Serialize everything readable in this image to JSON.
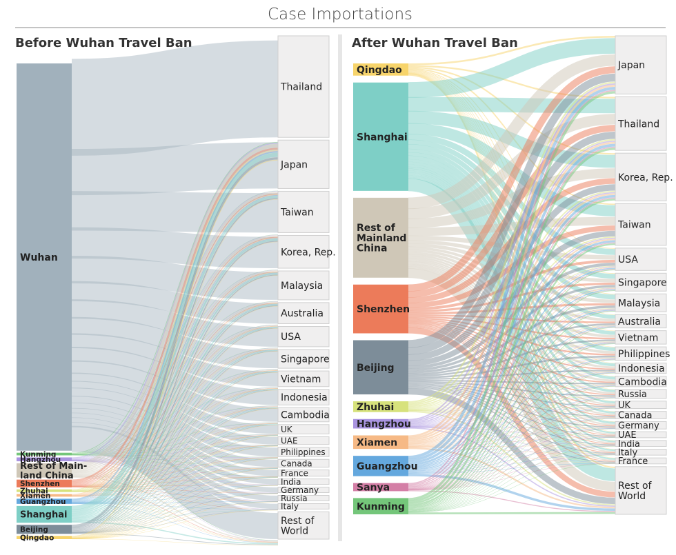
{
  "title": "Case Importations",
  "chart_data": [
    {
      "type": "sankey",
      "title": "Before Wuhan Travel Ban",
      "sources": [
        {
          "name": "Wuhan",
          "value": 600,
          "color": "#a1b1bc"
        },
        {
          "name": "Kunming",
          "value": 4,
          "color": "#74c67a"
        },
        {
          "name": "Hangzhou",
          "value": 6,
          "color": "#a994e0"
        },
        {
          "name": "Rest of Main-\nland China",
          "value": 22,
          "color": "#cfc7b7"
        },
        {
          "name": "Shenzhen",
          "value": 12,
          "color": "#ec7b5a"
        },
        {
          "name": "Zhuhai",
          "value": 4,
          "color": "#d7e27c"
        },
        {
          "name": "Xiamen",
          "value": 4,
          "color": "#f6b985"
        },
        {
          "name": "Guangzhou",
          "value": 8,
          "color": "#64a8de"
        },
        {
          "name": "Shanghai",
          "value": 26,
          "color": "#7ecfc6"
        },
        {
          "name": "Beijing",
          "value": 14,
          "color": "#7d8d99"
        },
        {
          "name": "Qingdao",
          "value": 5,
          "color": "#f7d46b"
        }
      ],
      "destinations": [
        {
          "name": "Thailand",
          "value": 130
        },
        {
          "name": "Japan",
          "value": 62
        },
        {
          "name": "Taiwan",
          "value": 53
        },
        {
          "name": "Korea, Rep.",
          "value": 42
        },
        {
          "name": "Malaysia",
          "value": 37
        },
        {
          "name": "Australia",
          "value": 27
        },
        {
          "name": "USA",
          "value": 26
        },
        {
          "name": "Singapore",
          "value": 24
        },
        {
          "name": "Vietnam",
          "value": 20
        },
        {
          "name": "Indonesia",
          "value": 20
        },
        {
          "name": "Cambodia",
          "value": 18
        },
        {
          "name": "UK",
          "value": 12
        },
        {
          "name": "UAE",
          "value": 10
        },
        {
          "name": "Philippines",
          "value": 12
        },
        {
          "name": "Canada",
          "value": 10
        },
        {
          "name": "France",
          "value": 8
        },
        {
          "name": "India",
          "value": 7
        },
        {
          "name": "Germany",
          "value": 7
        },
        {
          "name": "Russia",
          "value": 7
        },
        {
          "name": "Italy",
          "value": 7
        },
        {
          "name": "Rest of\nWorld",
          "value": 35
        }
      ]
    },
    {
      "type": "sankey",
      "title": "After Wuhan Travel Ban",
      "sources": [
        {
          "name": "Qingdao",
          "value": 18,
          "color": "#f7d46b"
        },
        {
          "name": "Shanghai",
          "value": 160,
          "color": "#7ecfc6"
        },
        {
          "name": "Rest of\nMainland\nChina",
          "value": 118,
          "color": "#cfc7b7"
        },
        {
          "name": "Shenzhen",
          "value": 72,
          "color": "#ec7b5a"
        },
        {
          "name": "Beijing",
          "value": 80,
          "color": "#7d8d99"
        },
        {
          "name": "Zhuhai",
          "value": 16,
          "color": "#d7e27c"
        },
        {
          "name": "Hangzhou",
          "value": 14,
          "color": "#a994e0"
        },
        {
          "name": "Xiamen",
          "value": 20,
          "color": "#f6b985"
        },
        {
          "name": "Guangzhou",
          "value": 30,
          "color": "#64a8de"
        },
        {
          "name": "Sanya",
          "value": 12,
          "color": "#d47fa6"
        },
        {
          "name": "Kunming",
          "value": 24,
          "color": "#74c67a"
        }
      ],
      "destinations": [
        {
          "name": "Japan",
          "value": 78
        },
        {
          "name": "Thailand",
          "value": 72
        },
        {
          "name": "Korea, Rep.",
          "value": 64
        },
        {
          "name": "Taiwan",
          "value": 56
        },
        {
          "name": "USA",
          "value": 30
        },
        {
          "name": "Singapore",
          "value": 24
        },
        {
          "name": "Malaysia",
          "value": 24
        },
        {
          "name": "Australia",
          "value": 18
        },
        {
          "name": "Vietnam",
          "value": 18
        },
        {
          "name": "Philippines",
          "value": 18
        },
        {
          "name": "Indonesia",
          "value": 14
        },
        {
          "name": "Cambodia",
          "value": 14
        },
        {
          "name": "Russia",
          "value": 12
        },
        {
          "name": "UK",
          "value": 10
        },
        {
          "name": "Canada",
          "value": 10
        },
        {
          "name": "Germany",
          "value": 10
        },
        {
          "name": "UAE",
          "value": 8
        },
        {
          "name": "India",
          "value": 8
        },
        {
          "name": "Italy",
          "value": 8
        },
        {
          "name": "France",
          "value": 8
        },
        {
          "name": "Rest of\nWorld",
          "value": 64
        }
      ]
    }
  ]
}
